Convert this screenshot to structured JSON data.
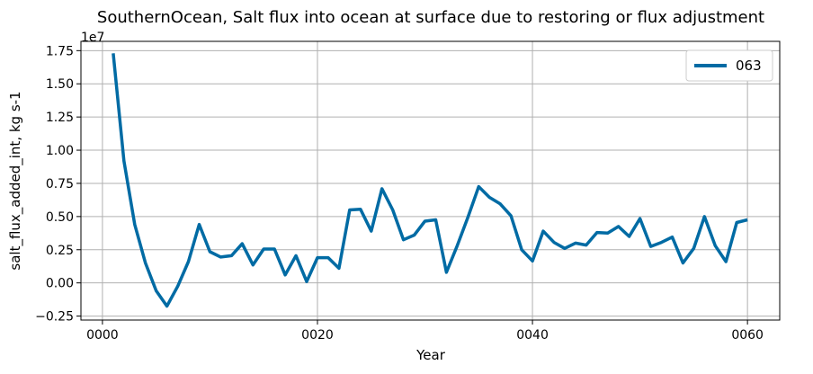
{
  "chart_data": {
    "type": "line",
    "title": "SouthernOcean, Salt flux into ocean at surface due to restoring or flux adjustment",
    "xlabel": "Year",
    "ylabel": "salt_flux_added_int, kg s-1",
    "y_offset_label": "1e7",
    "xlim": [
      -2,
      63
    ],
    "ylim": [
      -2800000,
      18200000
    ],
    "x_ticks": [
      0,
      20,
      40,
      60
    ],
    "x_tick_labels": [
      "0000",
      "0020",
      "0040",
      "0060"
    ],
    "y_ticks": [
      -2500000,
      0,
      2500000,
      5000000,
      7500000,
      10000000,
      12500000,
      15000000,
      17500000
    ],
    "y_tick_labels": [
      "−0.25",
      "0.00",
      "0.25",
      "0.50",
      "0.75",
      "1.00",
      "1.25",
      "1.50",
      "1.75"
    ],
    "grid": true,
    "legend_position": "top-right",
    "series": [
      {
        "name": "063",
        "color": "#006ba4",
        "x": [
          1,
          2,
          3,
          4,
          5,
          6,
          7,
          8,
          9,
          10,
          11,
          12,
          13,
          14,
          15,
          16,
          17,
          18,
          19,
          20,
          21,
          22,
          23,
          24,
          25,
          26,
          27,
          28,
          29,
          30,
          31,
          32,
          33,
          34,
          35,
          36,
          37,
          38,
          39,
          40,
          41,
          42,
          43,
          44,
          45,
          46,
          47,
          48,
          49,
          50,
          51,
          52,
          53,
          54,
          55,
          56,
          57,
          58,
          59,
          60
        ],
        "values": [
          17300000,
          9200000,
          4400000,
          1500000,
          -600000,
          -1750000,
          -250000,
          1600000,
          4400000,
          2350000,
          1950000,
          2050000,
          2950000,
          1350000,
          2550000,
          2550000,
          600000,
          2050000,
          100000,
          1900000,
          1900000,
          1100000,
          5500000,
          5550000,
          3900000,
          7100000,
          5500000,
          3250000,
          3600000,
          4650000,
          4750000,
          800000,
          2800000,
          4950000,
          7250000,
          6450000,
          5950000,
          5050000,
          2500000,
          1650000,
          3900000,
          3050000,
          2600000,
          3000000,
          2850000,
          3800000,
          3750000,
          4250000,
          3500000,
          4850000,
          2750000,
          3050000,
          3450000,
          1500000,
          2600000,
          5000000,
          2800000,
          1600000,
          4550000,
          4750000
        ]
      }
    ]
  }
}
